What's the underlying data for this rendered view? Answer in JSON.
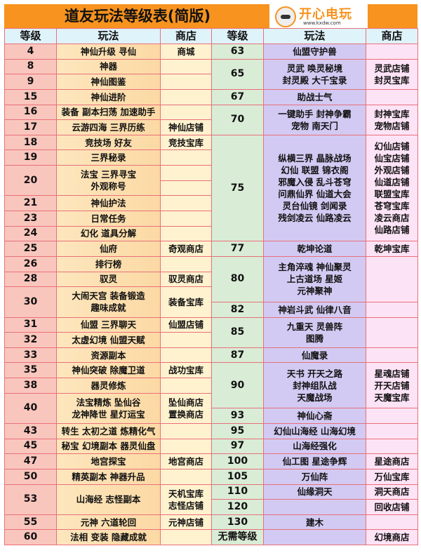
{
  "title": "道友玩法等级表(简版)",
  "logo": {
    "name": "开心电玩",
    "url": "www.kxdw.com"
  },
  "headers": [
    "等级",
    "玩法",
    "商店",
    "等级",
    "玩法",
    "商店"
  ],
  "colors": {
    "title_bar": "#f7931e",
    "header": "#dff3fb",
    "border": "#e8707a"
  },
  "left": {
    "levels": [
      {
        "text": "4",
        "span": 1
      },
      {
        "text": "8",
        "span": 1
      },
      {
        "text": "9",
        "span": 1
      },
      {
        "text": "15",
        "span": 1
      },
      {
        "text": "16",
        "span": 1
      },
      {
        "text": "17",
        "span": 1
      },
      {
        "text": "18",
        "span": 1
      },
      {
        "text": "19",
        "span": 1
      },
      {
        "text": "20",
        "span": 2
      },
      {
        "text": "21",
        "span": 1
      },
      {
        "text": "23",
        "span": 1
      },
      {
        "text": "24",
        "span": 1
      },
      {
        "text": "25",
        "span": 1
      },
      {
        "text": "26",
        "span": 1
      },
      {
        "text": "28",
        "span": 1
      },
      {
        "text": "30",
        "span": 2
      },
      {
        "text": "31",
        "span": 1
      },
      {
        "text": "32",
        "span": 1
      },
      {
        "text": "33",
        "span": 1
      },
      {
        "text": "35",
        "span": 1
      },
      {
        "text": "38",
        "span": 1
      },
      {
        "text": "40",
        "span": 2
      },
      {
        "text": "43",
        "span": 1
      },
      {
        "text": "45",
        "span": 1
      },
      {
        "text": "47",
        "span": 1
      },
      {
        "text": "50",
        "span": 1
      },
      {
        "text": "53",
        "span": 2
      },
      {
        "text": "55",
        "span": 1
      },
      {
        "text": "60",
        "span": 1
      }
    ],
    "plays": [
      {
        "text": "神仙升级 寻仙",
        "span": 1
      },
      {
        "text": "神器",
        "span": 1
      },
      {
        "text": "神仙图鉴",
        "span": 1
      },
      {
        "text": "神仙进阶",
        "span": 1
      },
      {
        "text": "装备 副本扫荡 加速助手",
        "span": 1
      },
      {
        "text": "云游四海 三界历练",
        "span": 1
      },
      {
        "text": "竞技场 好友",
        "span": 1
      },
      {
        "text": "三界秘录",
        "span": 1
      },
      {
        "text": "法宝 三界寻宝\n外观称号",
        "span": 2
      },
      {
        "text": "神仙护法",
        "span": 1
      },
      {
        "text": "日常任务",
        "span": 1
      },
      {
        "text": "幻化 道具分解",
        "span": 1
      },
      {
        "text": "仙府",
        "span": 1
      },
      {
        "text": "排行榜",
        "span": 1
      },
      {
        "text": "驭灵",
        "span": 1
      },
      {
        "text": "大闹天宫 装备锻造\n趣味成就",
        "span": 2
      },
      {
        "text": "仙盟 三界聊天",
        "span": 1
      },
      {
        "text": "太虚幻境 仙盟天赋",
        "span": 1
      },
      {
        "text": "资源副本",
        "span": 1
      },
      {
        "text": "神仙突破 除魔卫道",
        "span": 1
      },
      {
        "text": "器灵修炼",
        "span": 1
      },
      {
        "text": "法宝精炼 坠仙谷\n龙神降世 星灯运宝",
        "span": 2
      },
      {
        "text": "转生 太初之道 炼精化气",
        "span": 1
      },
      {
        "text": "秘宝 幻境副本 器灵仙盘",
        "span": 1
      },
      {
        "text": "地宫探宝",
        "span": 1
      },
      {
        "text": "精英副本 神器升品",
        "span": 1
      },
      {
        "text": "山海经 志怪副本",
        "span": 2
      },
      {
        "text": "元神 六道轮回",
        "span": 1
      },
      {
        "text": "法相 变装 隐藏成就",
        "span": 1
      }
    ],
    "shops": [
      {
        "text": "商城",
        "span": 1
      },
      {
        "text": "",
        "span": 1
      },
      {
        "text": "",
        "span": 1
      },
      {
        "text": "",
        "span": 1
      },
      {
        "text": "",
        "span": 1
      },
      {
        "text": "神仙店铺",
        "span": 1
      },
      {
        "text": "竞技宝库",
        "span": 1
      },
      {
        "text": "",
        "span": 1
      },
      {
        "text": "",
        "span": 1
      },
      {
        "text": "",
        "span": 1
      },
      {
        "text": "",
        "span": 1
      },
      {
        "text": "",
        "span": 1
      },
      {
        "text": "",
        "span": 1
      },
      {
        "text": "奇观商店",
        "span": 1
      },
      {
        "text": "",
        "span": 1
      },
      {
        "text": "驭灵商店",
        "span": 1
      },
      {
        "text": "装备宝库",
        "span": 2
      },
      {
        "text": "仙盟店铺",
        "span": 1
      },
      {
        "text": "",
        "span": 1
      },
      {
        "text": "",
        "span": 1
      },
      {
        "text": "战功宝库",
        "span": 1
      },
      {
        "text": "",
        "span": 1
      },
      {
        "text": "坠仙商店\n置换商店",
        "span": 2
      },
      {
        "text": "",
        "span": 1
      },
      {
        "text": "",
        "span": 1
      },
      {
        "text": "地宫商店",
        "span": 1
      },
      {
        "text": "",
        "span": 1
      },
      {
        "text": "天机宝库\n志怪店铺",
        "span": 2
      },
      {
        "text": "元神店铺",
        "span": 1
      },
      {
        "text": "",
        "span": 1
      }
    ]
  },
  "right": {
    "levels": [
      {
        "text": "63",
        "span": 1
      },
      {
        "text": "65",
        "span": 2
      },
      {
        "text": "67",
        "span": 1
      },
      {
        "text": "70",
        "span": 2
      },
      {
        "text": "75",
        "span": 7
      },
      {
        "text": "77",
        "span": 1
      },
      {
        "text": "80",
        "span": 3
      },
      {
        "text": "82",
        "span": 1
      },
      {
        "text": "85",
        "span": 2
      },
      {
        "text": "87",
        "span": 1
      },
      {
        "text": "90",
        "span": 3
      },
      {
        "text": "93",
        "span": 1
      },
      {
        "text": "95",
        "span": 1
      },
      {
        "text": "97",
        "span": 1
      },
      {
        "text": "100",
        "span": 1
      },
      {
        "text": "105",
        "span": 1
      },
      {
        "text": "110",
        "span": 1
      },
      {
        "text": "120",
        "span": 1
      },
      {
        "text": "130",
        "span": 1
      },
      {
        "text": "无需等级",
        "span": 1
      }
    ],
    "plays": [
      {
        "text": "仙盟守护兽",
        "span": 1
      },
      {
        "text": "灵武 唤灵秘境\n封灵殿 大千宝录",
        "span": 2
      },
      {
        "text": "助战士气",
        "span": 1
      },
      {
        "text": "一键助手 封神争霸\n宠物 南天门",
        "span": 2
      },
      {
        "text": "纵横三界 晶脉战场\n幻仙 联盟 锦衣阁\n邪魔入侵 乱斗苍穹\n问鼎仙界 仙道大会\n灵台仙镜 剑闻录\n残剑凌云 仙路凌云",
        "span": 7
      },
      {
        "text": "乾坤论道",
        "span": 1
      },
      {
        "text": "主角淬魂 神仙聚灵\n上古道场 星姬\n元神聚神",
        "span": 3
      },
      {
        "text": "神岩斗武 仙律八音",
        "span": 1
      },
      {
        "text": "九重天 灵兽阵\n图腾",
        "span": 2
      },
      {
        "text": "仙魔录",
        "span": 1
      },
      {
        "text": "天书 开天之路\n封神组队战\n天魔战场",
        "span": 3
      },
      {
        "text": "神仙心斋",
        "span": 1
      },
      {
        "text": "幻仙山海经 山海幻境",
        "span": 1
      },
      {
        "text": "山海经强化",
        "span": 1
      },
      {
        "text": "仙工图 星途争辉",
        "span": 1
      },
      {
        "text": "万仙阵",
        "span": 1
      },
      {
        "text": "仙缘洞天",
        "span": 1
      },
      {
        "text": "",
        "span": 1
      },
      {
        "text": "建木",
        "span": 1
      },
      {
        "text": "",
        "span": 1
      }
    ],
    "shops": [
      {
        "text": "",
        "span": 1
      },
      {
        "text": "灵武店铺\n封灵宝库",
        "span": 2
      },
      {
        "text": "",
        "span": 1
      },
      {
        "text": "封神宝库\n宠物店铺",
        "span": 2
      },
      {
        "text": "幻仙店铺\n仙宝店铺\n外观店铺\n仙道店铺\n联盟宝库\n苍穹宝库\n凌云商店\n仙路店铺",
        "span": 7
      },
      {
        "text": "乾坤宝库",
        "span": 1
      },
      {
        "text": "",
        "span": 3
      },
      {
        "text": "",
        "span": 1
      },
      {
        "text": "",
        "span": 2
      },
      {
        "text": "",
        "span": 1
      },
      {
        "text": "星魂店铺\n开天店铺\n天魔宝库",
        "span": 3
      },
      {
        "text": "",
        "span": 1
      },
      {
        "text": "",
        "span": 1
      },
      {
        "text": "",
        "span": 1
      },
      {
        "text": "星途商店",
        "span": 1
      },
      {
        "text": "万仙宝库",
        "span": 1
      },
      {
        "text": "洞天商店",
        "span": 1
      },
      {
        "text": "回收店铺",
        "span": 1
      },
      {
        "text": "",
        "span": 1
      },
      {
        "text": "幻境商店",
        "span": 1
      }
    ]
  }
}
